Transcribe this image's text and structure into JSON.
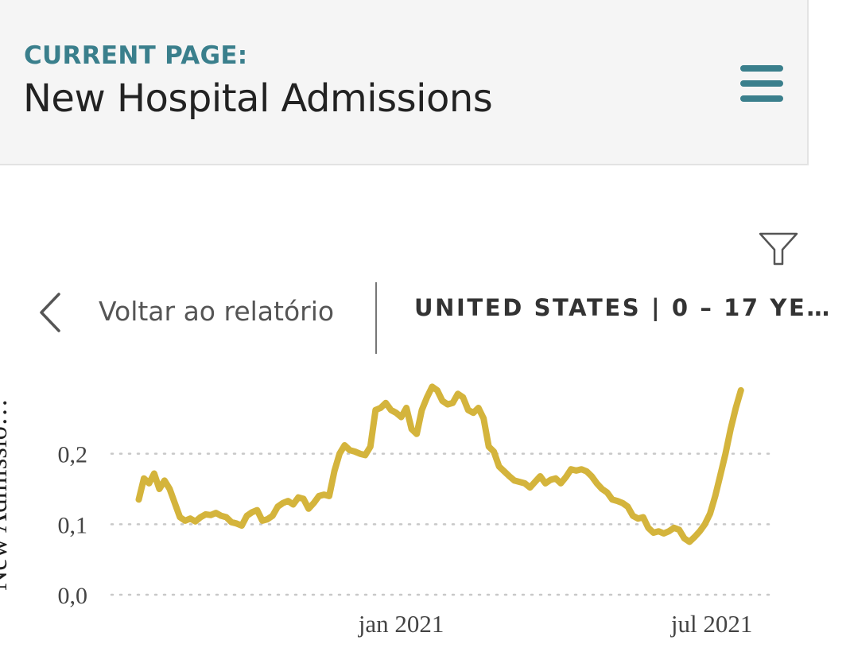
{
  "header": {
    "current_page_label": "CURRENT PAGE:",
    "page_title": "New Hospital Admissions"
  },
  "nav": {
    "back_label": "Voltar ao relatório",
    "scope_title": "UNITED STATES | 0 – 17 YE…"
  },
  "icons": {
    "menu": "hamburger-menu-icon",
    "filter": "filter-funnel-icon",
    "back": "chevron-left-icon"
  },
  "colors": {
    "accent": "#3a7f8c",
    "line": "#d4b43c",
    "grid": "#c8c8c8"
  },
  "chart_data": {
    "type": "line",
    "ylabel": "New Admissio…",
    "ylim": [
      0,
      0.3
    ],
    "y_ticks": [
      {
        "value": 0.0,
        "label": "0,0"
      },
      {
        "value": 0.1,
        "label": "0,1"
      },
      {
        "value": 0.2,
        "label": "0,2"
      }
    ],
    "x_ticks": [
      {
        "date": "2021-01-01",
        "label": "jan 2021"
      },
      {
        "date": "2021-07-01",
        "label": "jul 2021"
      }
    ],
    "grid": true,
    "series": [
      {
        "points": [
          [
            "2020-08-01",
            0.135
          ],
          [
            "2020-08-04",
            0.165
          ],
          [
            "2020-08-07",
            0.158
          ],
          [
            "2020-08-10",
            0.172
          ],
          [
            "2020-08-13",
            0.15
          ],
          [
            "2020-08-16",
            0.162
          ],
          [
            "2020-08-19",
            0.15
          ],
          [
            "2020-08-22",
            0.13
          ],
          [
            "2020-08-25",
            0.11
          ],
          [
            "2020-08-28",
            0.105
          ],
          [
            "2020-08-31",
            0.108
          ],
          [
            "2020-09-03",
            0.104
          ],
          [
            "2020-09-06",
            0.11
          ],
          [
            "2020-09-09",
            0.114
          ],
          [
            "2020-09-12",
            0.113
          ],
          [
            "2020-09-15",
            0.116
          ],
          [
            "2020-09-18",
            0.112
          ],
          [
            "2020-09-21",
            0.11
          ],
          [
            "2020-09-24",
            0.103
          ],
          [
            "2020-09-27",
            0.101
          ],
          [
            "2020-09-30",
            0.098
          ],
          [
            "2020-10-03",
            0.112
          ],
          [
            "2020-10-06",
            0.117
          ],
          [
            "2020-10-09",
            0.12
          ],
          [
            "2020-10-12",
            0.105
          ],
          [
            "2020-10-15",
            0.107
          ],
          [
            "2020-10-18",
            0.112
          ],
          [
            "2020-10-21",
            0.125
          ],
          [
            "2020-10-24",
            0.13
          ],
          [
            "2020-10-27",
            0.133
          ],
          [
            "2020-10-30",
            0.128
          ],
          [
            "2020-11-02",
            0.138
          ],
          [
            "2020-11-05",
            0.136
          ],
          [
            "2020-11-08",
            0.122
          ],
          [
            "2020-11-11",
            0.13
          ],
          [
            "2020-11-14",
            0.14
          ],
          [
            "2020-11-17",
            0.142
          ],
          [
            "2020-11-20",
            0.14
          ],
          [
            "2020-11-23",
            0.175
          ],
          [
            "2020-11-26",
            0.2
          ],
          [
            "2020-11-29",
            0.212
          ],
          [
            "2020-12-02",
            0.205
          ],
          [
            "2020-12-05",
            0.203
          ],
          [
            "2020-12-08",
            0.2
          ],
          [
            "2020-12-11",
            0.198
          ],
          [
            "2020-12-14",
            0.21
          ],
          [
            "2020-12-17",
            0.262
          ],
          [
            "2020-12-20",
            0.265
          ],
          [
            "2020-12-23",
            0.272
          ],
          [
            "2020-12-26",
            0.262
          ],
          [
            "2020-12-29",
            0.258
          ],
          [
            "2021-01-01",
            0.252
          ],
          [
            "2021-01-04",
            0.265
          ],
          [
            "2021-01-07",
            0.235
          ],
          [
            "2021-01-10",
            0.228
          ],
          [
            "2021-01-13",
            0.262
          ],
          [
            "2021-01-16",
            0.28
          ],
          [
            "2021-01-19",
            0.295
          ],
          [
            "2021-01-22",
            0.29
          ],
          [
            "2021-01-25",
            0.275
          ],
          [
            "2021-01-28",
            0.27
          ],
          [
            "2021-01-31",
            0.272
          ],
          [
            "2021-02-03",
            0.285
          ],
          [
            "2021-02-06",
            0.28
          ],
          [
            "2021-02-09",
            0.262
          ],
          [
            "2021-02-12",
            0.258
          ],
          [
            "2021-02-15",
            0.265
          ],
          [
            "2021-02-18",
            0.25
          ],
          [
            "2021-02-21",
            0.21
          ],
          [
            "2021-02-24",
            0.203
          ],
          [
            "2021-02-27",
            0.182
          ],
          [
            "2021-03-02",
            0.175
          ],
          [
            "2021-03-05",
            0.168
          ],
          [
            "2021-03-08",
            0.162
          ],
          [
            "2021-03-11",
            0.16
          ],
          [
            "2021-03-14",
            0.158
          ],
          [
            "2021-03-17",
            0.152
          ],
          [
            "2021-03-20",
            0.16
          ],
          [
            "2021-03-23",
            0.168
          ],
          [
            "2021-03-26",
            0.158
          ],
          [
            "2021-03-29",
            0.163
          ],
          [
            "2021-04-01",
            0.165
          ],
          [
            "2021-04-04",
            0.158
          ],
          [
            "2021-04-07",
            0.167
          ],
          [
            "2021-04-10",
            0.178
          ],
          [
            "2021-04-13",
            0.176
          ],
          [
            "2021-04-16",
            0.178
          ],
          [
            "2021-04-19",
            0.175
          ],
          [
            "2021-04-22",
            0.168
          ],
          [
            "2021-04-25",
            0.158
          ],
          [
            "2021-04-28",
            0.15
          ],
          [
            "2021-05-01",
            0.145
          ],
          [
            "2021-05-04",
            0.135
          ],
          [
            "2021-05-07",
            0.133
          ],
          [
            "2021-05-10",
            0.13
          ],
          [
            "2021-05-13",
            0.125
          ],
          [
            "2021-05-16",
            0.112
          ],
          [
            "2021-05-19",
            0.108
          ],
          [
            "2021-05-22",
            0.11
          ],
          [
            "2021-05-25",
            0.095
          ],
          [
            "2021-05-28",
            0.088
          ],
          [
            "2021-05-31",
            0.09
          ],
          [
            "2021-06-03",
            0.087
          ],
          [
            "2021-06-06",
            0.09
          ],
          [
            "2021-06-09",
            0.095
          ],
          [
            "2021-06-12",
            0.092
          ],
          [
            "2021-06-15",
            0.08
          ],
          [
            "2021-06-18",
            0.075
          ],
          [
            "2021-06-21",
            0.082
          ],
          [
            "2021-06-24",
            0.09
          ],
          [
            "2021-06-27",
            0.1
          ],
          [
            "2021-06-30",
            0.115
          ],
          [
            "2021-07-03",
            0.14
          ],
          [
            "2021-07-06",
            0.17
          ],
          [
            "2021-07-09",
            0.2
          ],
          [
            "2021-07-12",
            0.235
          ],
          [
            "2021-07-15",
            0.265
          ],
          [
            "2021-07-18",
            0.29
          ]
        ]
      }
    ]
  }
}
